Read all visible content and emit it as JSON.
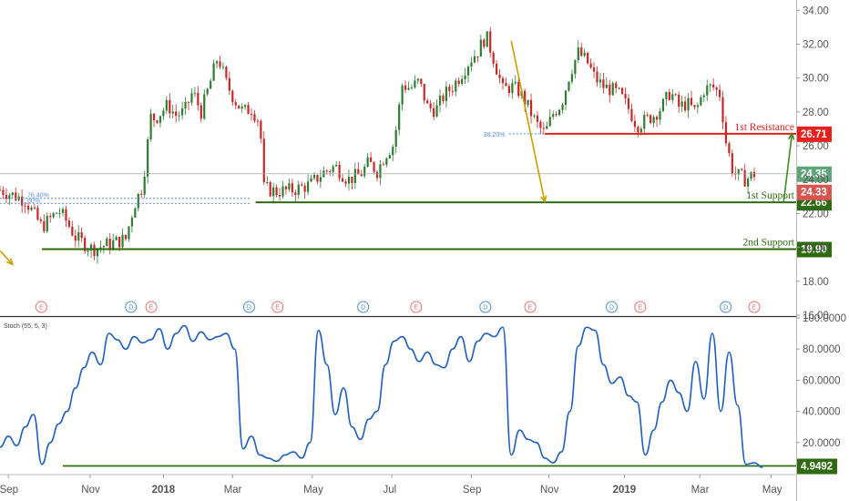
{
  "chart_data": [
    {
      "type": "candlestick",
      "panel": "price",
      "ylim": [
        16,
        34.5
      ],
      "y_ticks": [
        "34.00",
        "32.00",
        "30.00",
        "28.00",
        "26.00",
        "24.00",
        "22.00",
        "20.00",
        "18.00",
        "16.00"
      ],
      "x_ticks": [
        "Sep",
        "Nov",
        "2018",
        "Mar",
        "May",
        "Jul",
        "Sep",
        "Nov",
        "2019",
        "Mar",
        "May"
      ],
      "close_path": [
        [
          0,
          23.4
        ],
        [
          6,
          22.8
        ],
        [
          10,
          21.2
        ],
        [
          14,
          22.2
        ],
        [
          16,
          21.5
        ],
        [
          18,
          20.6
        ],
        [
          22,
          19.9
        ],
        [
          26,
          20.2
        ],
        [
          30,
          20.5
        ],
        [
          32,
          22.5
        ],
        [
          34,
          23.6
        ],
        [
          36,
          27.7
        ],
        [
          37,
          27.6
        ],
        [
          40,
          28.4
        ],
        [
          42,
          27.8
        ],
        [
          44,
          28.0
        ],
        [
          46,
          29.2
        ],
        [
          48,
          28.0
        ],
        [
          50,
          29.6
        ],
        [
          52,
          31.3
        ],
        [
          54,
          29.7
        ],
        [
          56,
          28.7
        ],
        [
          58,
          28.0
        ],
        [
          60,
          28.2
        ],
        [
          62,
          27.4
        ],
        [
          63,
          23.5
        ],
        [
          66,
          23.3
        ],
        [
          70,
          23.4
        ],
        [
          74,
          23.7
        ],
        [
          77,
          24.4
        ],
        [
          80,
          24.8
        ],
        [
          83,
          24.0
        ],
        [
          86,
          24.3
        ],
        [
          88,
          25.0
        ],
        [
          90,
          24.5
        ],
        [
          92,
          25.5
        ],
        [
          94,
          26.1
        ],
        [
          96,
          29.6
        ],
        [
          98,
          29.4
        ],
        [
          100,
          29.8
        ],
        [
          102,
          28.3
        ],
        [
          104,
          28.1
        ],
        [
          106,
          29.0
        ],
        [
          108,
          29.5
        ],
        [
          110,
          30.2
        ],
        [
          112,
          31.0
        ],
        [
          114,
          31.6
        ],
        [
          116,
          32.5
        ],
        [
          118,
          31.0
        ],
        [
          120,
          29.3
        ],
        [
          122,
          29.5
        ],
        [
          124,
          29.2
        ],
        [
          126,
          28.3
        ],
        [
          128,
          27.3
        ],
        [
          130,
          26.7
        ],
        [
          132,
          27.9
        ],
        [
          134,
          28.5
        ],
        [
          136,
          30.3
        ],
        [
          138,
          31.5
        ],
        [
          140,
          31.0
        ],
        [
          142,
          30.0
        ],
        [
          144,
          29.5
        ],
        [
          146,
          29.3
        ],
        [
          148,
          29.0
        ],
        [
          150,
          28.2
        ],
        [
          152,
          27.2
        ],
        [
          154,
          27.5
        ],
        [
          156,
          27.8
        ],
        [
          158,
          28.3
        ],
        [
          160,
          29.2
        ],
        [
          162,
          28.3
        ],
        [
          164,
          28.5
        ],
        [
          166,
          28.0
        ],
        [
          168,
          29.3
        ],
        [
          170,
          29.5
        ],
        [
          172,
          29.0
        ],
        [
          173,
          26.5
        ],
        [
          175,
          24.4
        ],
        [
          178,
          24.0
        ],
        [
          180,
          24.35
        ]
      ],
      "current_price": "24.35",
      "current_price_red": "24.33",
      "fib_levels": [
        {
          "label": "76.40%",
          "value": 22.9
        },
        {
          "label": "80%",
          "value": 22.6
        },
        {
          "label": "38.20%",
          "value": 26.71
        }
      ],
      "levels": [
        {
          "name": "1st Resistance",
          "value": 26.71,
          "price_label": "26.71",
          "color": "#e8201c"
        },
        {
          "name": "1st Support",
          "value": 22.66,
          "price_label": "22.66",
          "color": "#2e6b0f"
        },
        {
          "name": "2nd Support",
          "value": 19.9,
          "price_label": "19.90",
          "color": "#2e6b0f"
        }
      ],
      "events": [
        {
          "t": 5,
          "kind": "E"
        },
        {
          "t": 27,
          "kind": "D"
        },
        {
          "t": 32,
          "kind": "E"
        },
        {
          "t": 56,
          "kind": "D"
        },
        {
          "t": 63,
          "kind": "E"
        },
        {
          "t": 84,
          "kind": "D"
        },
        {
          "t": 97,
          "kind": "E"
        },
        {
          "t": 114,
          "kind": "D"
        },
        {
          "t": 125,
          "kind": "E"
        },
        {
          "t": 145,
          "kind": "D"
        },
        {
          "t": 152,
          "kind": "E"
        },
        {
          "t": 173,
          "kind": "D"
        },
        {
          "t": 180,
          "kind": "E"
        }
      ],
      "arrows": [
        {
          "color": "#c8a000",
          "from": [
            122,
            32.2
          ],
          "to": [
            130,
            22.7
          ]
        },
        {
          "color": "#3a8f1e",
          "from": [
            187,
            22.66
          ],
          "to": [
            189,
            26.71
          ]
        },
        {
          "color": "#c8a000",
          "from": [
            0,
            19.8
          ],
          "to": [
            3,
            19.0
          ]
        }
      ]
    },
    {
      "type": "line",
      "panel": "oscillator",
      "title": "Stoch (55, 5, 3)",
      "ylim": [
        0,
        100
      ],
      "y_ticks": [
        "100.0000",
        "80.0000",
        "60.0000",
        "40.0000",
        "20.0000"
      ],
      "current_value": "4.9492",
      "level": 4.9492,
      "values": [
        [
          0,
          17
        ],
        [
          2,
          24
        ],
        [
          4,
          18
        ],
        [
          6,
          30
        ],
        [
          8,
          38
        ],
        [
          10,
          6
        ],
        [
          12,
          20
        ],
        [
          14,
          32
        ],
        [
          16,
          40
        ],
        [
          18,
          55
        ],
        [
          20,
          68
        ],
        [
          22,
          78
        ],
        [
          24,
          70
        ],
        [
          26,
          90
        ],
        [
          28,
          86
        ],
        [
          30,
          80
        ],
        [
          32,
          88
        ],
        [
          34,
          84
        ],
        [
          36,
          86
        ],
        [
          38,
          93
        ],
        [
          40,
          80
        ],
        [
          42,
          90
        ],
        [
          44,
          95
        ],
        [
          46,
          85
        ],
        [
          48,
          91
        ],
        [
          50,
          86
        ],
        [
          52,
          88
        ],
        [
          54,
          90
        ],
        [
          56,
          80
        ],
        [
          58,
          16
        ],
        [
          60,
          24
        ],
        [
          62,
          12
        ],
        [
          64,
          10
        ],
        [
          66,
          8
        ],
        [
          68,
          12
        ],
        [
          70,
          14
        ],
        [
          72,
          10
        ],
        [
          74,
          20
        ],
        [
          76,
          92
        ],
        [
          78,
          70
        ],
        [
          80,
          38
        ],
        [
          82,
          55
        ],
        [
          84,
          30
        ],
        [
          86,
          22
        ],
        [
          88,
          35
        ],
        [
          90,
          40
        ],
        [
          92,
          70
        ],
        [
          94,
          85
        ],
        [
          96,
          88
        ],
        [
          98,
          80
        ],
        [
          100,
          72
        ],
        [
          102,
          78
        ],
        [
          104,
          70
        ],
        [
          106,
          68
        ],
        [
          108,
          80
        ],
        [
          110,
          88
        ],
        [
          112,
          72
        ],
        [
          114,
          85
        ],
        [
          116,
          90
        ],
        [
          118,
          88
        ],
        [
          120,
          94
        ],
        [
          122,
          12
        ],
        [
          124,
          28
        ],
        [
          126,
          22
        ],
        [
          128,
          20
        ],
        [
          130,
          10
        ],
        [
          132,
          7
        ],
        [
          134,
          14
        ],
        [
          136,
          40
        ],
        [
          138,
          82
        ],
        [
          140,
          94
        ],
        [
          142,
          92
        ],
        [
          144,
          70
        ],
        [
          146,
          58
        ],
        [
          148,
          62
        ],
        [
          150,
          50
        ],
        [
          152,
          46
        ],
        [
          154,
          12
        ],
        [
          156,
          28
        ],
        [
          158,
          46
        ],
        [
          160,
          60
        ],
        [
          162,
          52
        ],
        [
          164,
          40
        ],
        [
          166,
          72
        ],
        [
          168,
          48
        ],
        [
          170,
          90
        ],
        [
          172,
          40
        ],
        [
          174,
          78
        ],
        [
          176,
          44
        ],
        [
          178,
          6
        ],
        [
          180,
          7
        ],
        [
          182,
          4
        ]
      ]
    }
  ]
}
